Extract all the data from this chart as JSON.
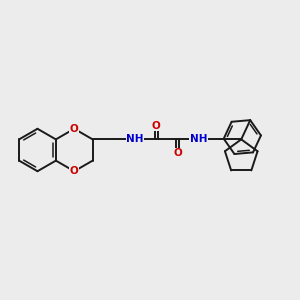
{
  "bg": "#ececec",
  "bc": "#1a1a1a",
  "oc": "#cc0000",
  "nc": "#0000cc",
  "lw": 1.4,
  "lw_inner": 1.1,
  "fs": 7.5,
  "xlim": [
    -5.2,
    8.8
  ],
  "ylim": [
    -3.2,
    3.2
  ]
}
